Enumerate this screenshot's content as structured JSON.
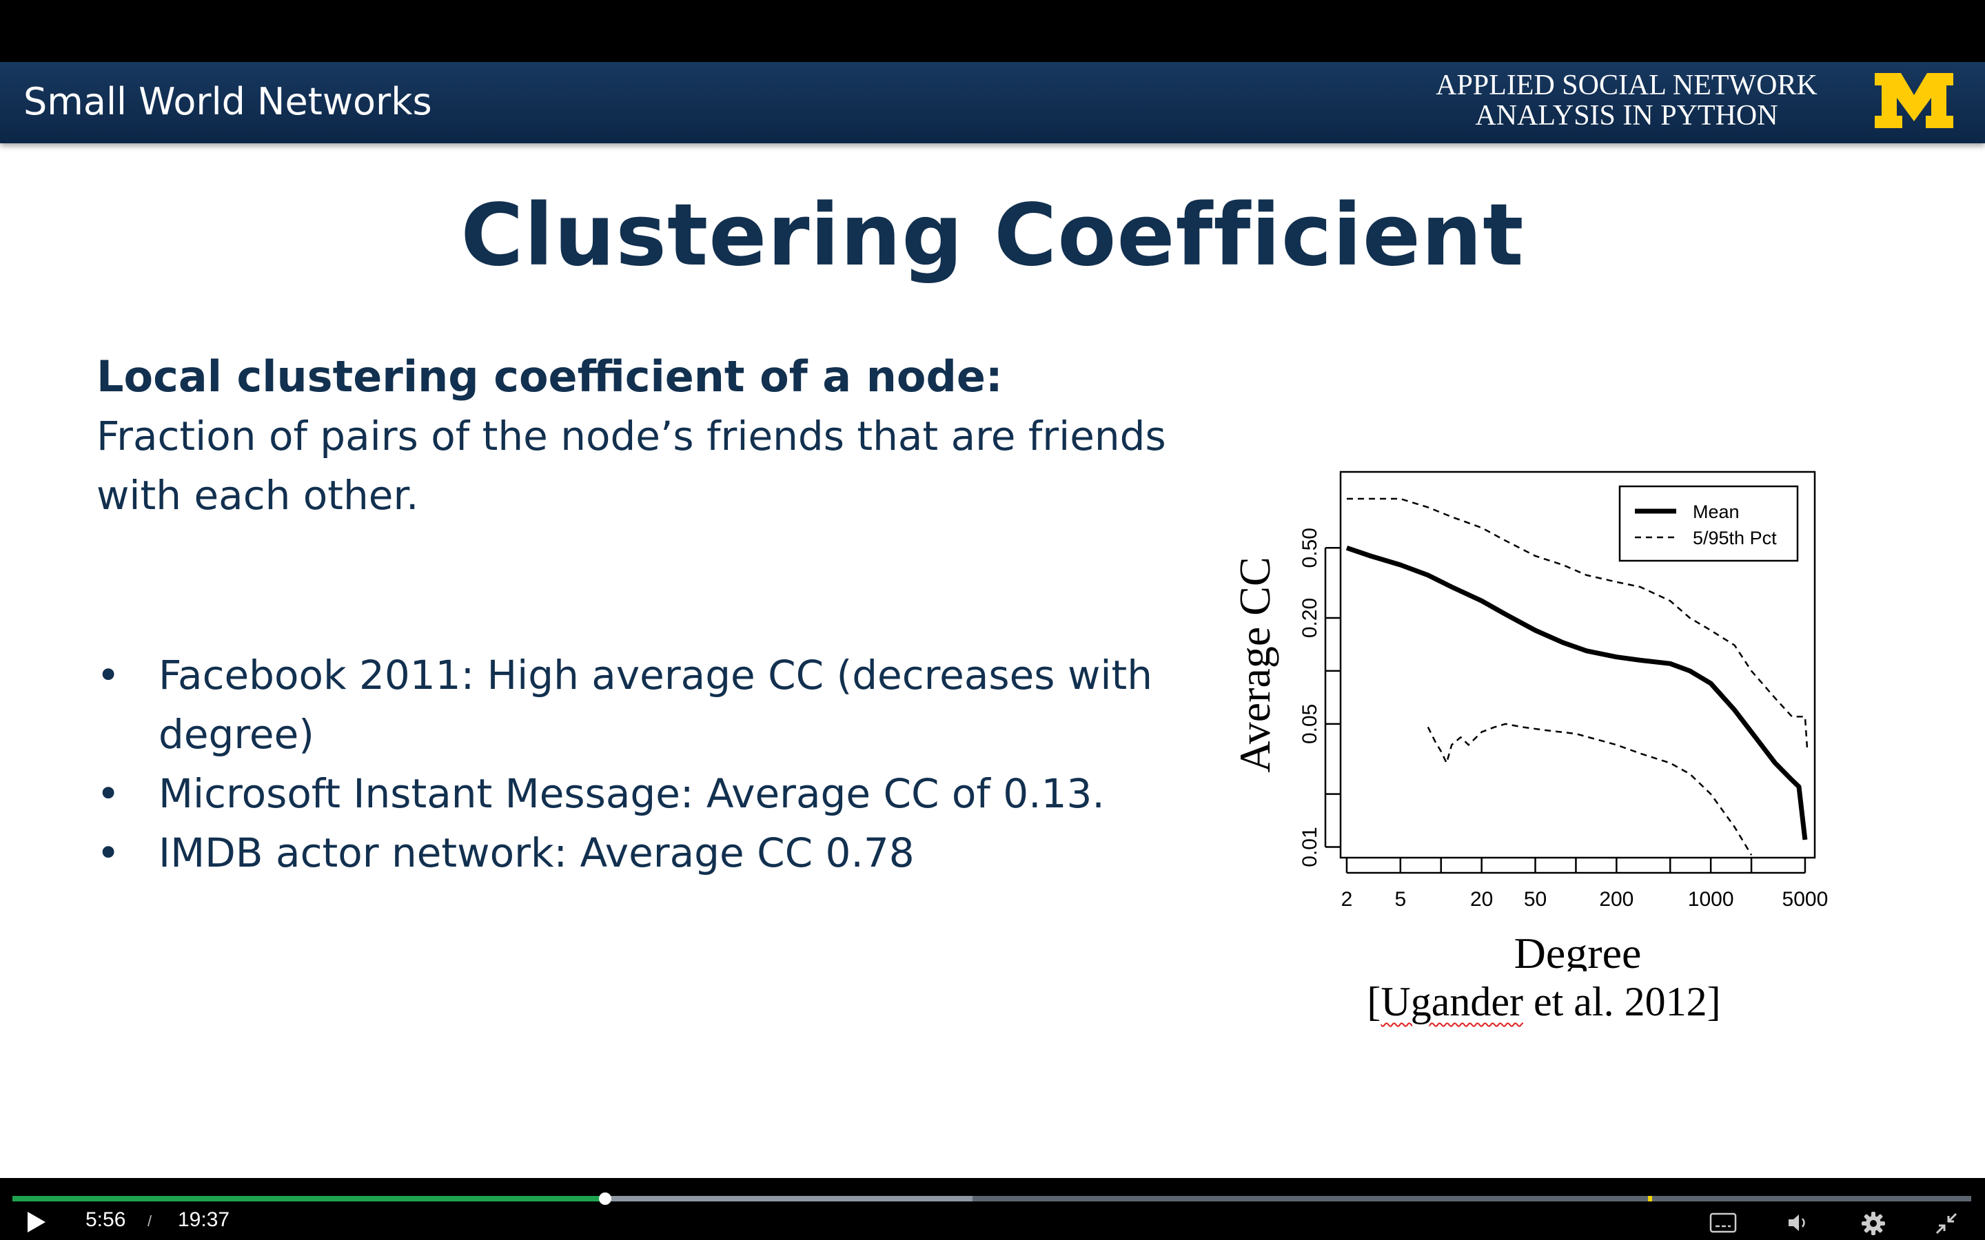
{
  "slide": {
    "header": {
      "title": "Small World Networks",
      "course_line1": "APPLIED SOCIAL NETWORK",
      "course_line2": "ANALYSIS IN PYTHON"
    },
    "title": "Clustering Coefficient",
    "definition_heading": "Local clustering coefficient of a node:",
    "definition_line1": "Fraction of pairs of the node’s friends that are friends",
    "definition_line2": "with each other.",
    "bullet_glyph": "•",
    "bullets": [
      {
        "line1": "Facebook 2011:  High average CC (decreases with",
        "line2": "degree)"
      },
      {
        "line1": "Microsoft Instant Message:  Average CC of 0.13."
      },
      {
        "line1": "IMDB actor network:  Average CC 0.78"
      }
    ],
    "citation": {
      "bracket_open": "[",
      "author": "Ugander",
      "rest": " et al. 2012]"
    }
  },
  "chart_data": {
    "type": "line",
    "xlabel": "Degree",
    "ylabel": "Average CC",
    "x_scale": "log",
    "y_scale": "log",
    "xlim": [
      1.8,
      5900
    ],
    "ylim": [
      0.0087,
      1.35
    ],
    "x_ticks": [
      2,
      5,
      10,
      20,
      50,
      100,
      200,
      500,
      1000,
      2000,
      5000
    ],
    "x_tick_labels": [
      "2",
      "5",
      "",
      "20",
      "50",
      "",
      "200",
      "",
      "1000",
      "",
      "5000"
    ],
    "y_ticks": [
      0.01,
      0.02,
      0.05,
      0.1,
      0.2,
      0.5
    ],
    "y_tick_labels": [
      "0.01",
      "",
      "0.05",
      "",
      "0.20",
      "0.50"
    ],
    "legend_position": "top-right",
    "grid": false,
    "series": [
      {
        "name": "Mean",
        "style": "solid",
        "color": "#000000",
        "x": [
          2,
          3,
          5,
          8,
          12,
          20,
          30,
          50,
          80,
          120,
          200,
          300,
          500,
          700,
          1000,
          1500,
          2000,
          3000,
          4000,
          4500,
          5000
        ],
        "y": [
          0.5,
          0.45,
          0.4,
          0.35,
          0.3,
          0.25,
          0.21,
          0.17,
          0.145,
          0.13,
          0.12,
          0.115,
          0.11,
          0.1,
          0.085,
          0.06,
          0.045,
          0.03,
          0.024,
          0.022,
          0.011
        ]
      },
      {
        "name": "5/95th Pct",
        "style": "dashed",
        "color": "#000000",
        "x": [
          2,
          5,
          8,
          12,
          20,
          30,
          50,
          80,
          120,
          200,
          300,
          500,
          700,
          1000,
          1500,
          2000,
          3000,
          4000,
          5000,
          5200
        ],
        "y": [
          0.95,
          0.95,
          0.85,
          0.75,
          0.65,
          0.55,
          0.45,
          0.4,
          0.35,
          0.32,
          0.3,
          0.25,
          0.2,
          0.17,
          0.14,
          0.1,
          0.07,
          0.055,
          0.055,
          0.035
        ]
      },
      {
        "name": "5/95th Pct",
        "style": "dashed",
        "color": "#000000",
        "x": [
          8,
          9,
          10,
          11,
          12,
          14,
          16,
          20,
          25,
          30,
          40,
          60,
          100,
          200,
          300,
          500,
          700,
          1000,
          1500,
          2000
        ],
        "y": [
          0.048,
          0.04,
          0.035,
          0.03,
          0.038,
          0.042,
          0.038,
          0.045,
          0.048,
          0.05,
          0.048,
          0.046,
          0.044,
          0.038,
          0.034,
          0.03,
          0.026,
          0.02,
          0.013,
          0.009
        ]
      }
    ]
  },
  "player": {
    "current_time": "5:56",
    "separator": "/",
    "duration": "19:37",
    "progress_fraction": 0.3025,
    "buffered_fraction": 0.49,
    "marker_fraction": 0.835,
    "colors": {
      "played": "#1fa24e",
      "buffered": "#8d98a3",
      "track": "#5d6670",
      "marker": "#f1d400"
    }
  }
}
